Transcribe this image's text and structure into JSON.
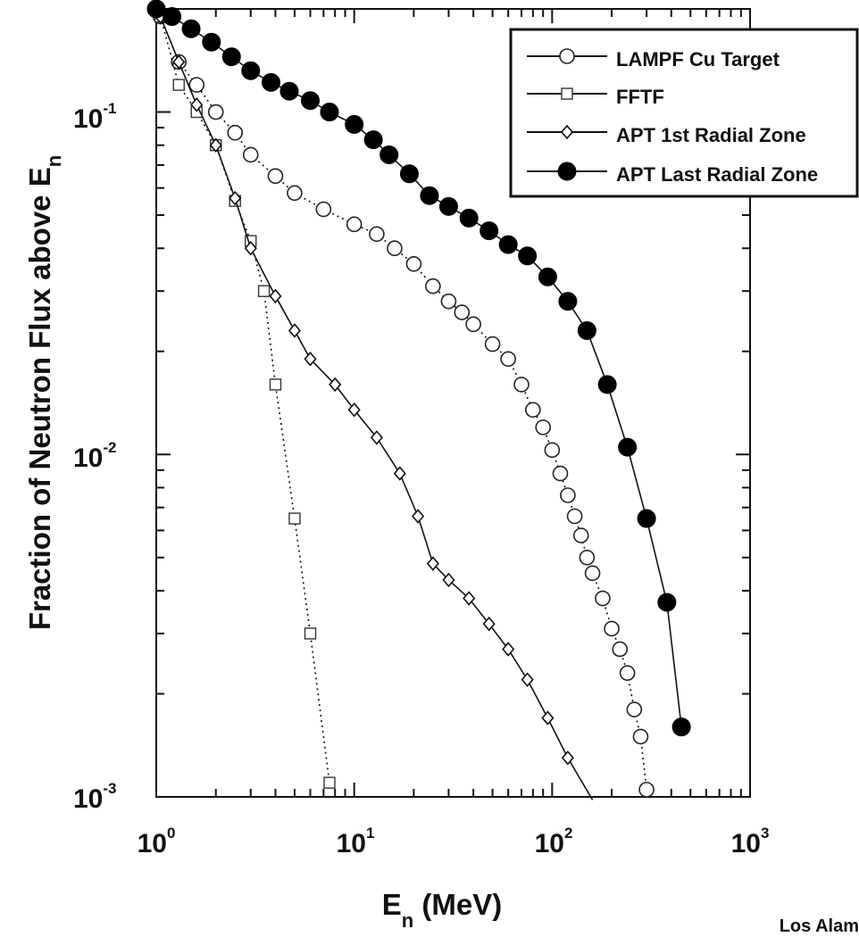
{
  "chart_data": {
    "type": "line",
    "xscale": "log",
    "yscale": "log",
    "xlim": [
      1,
      1000
    ],
    "ylim": [
      0.001,
      0.2
    ],
    "xlabel": {
      "base": "E",
      "sub": "n",
      "rest": " (MeV)"
    },
    "ylabel": {
      "base": "Fraction of Neutron  Flux above E",
      "sub": "n"
    },
    "x_ticks": [
      {
        "base": "10",
        "exp": "0"
      },
      {
        "base": "10",
        "exp": "1"
      },
      {
        "base": "10",
        "exp": "2"
      },
      {
        "base": "10",
        "exp": "3"
      }
    ],
    "y_ticks": [
      {
        "base": "10",
        "exp": "-1"
      },
      {
        "base": "10",
        "exp": "-2"
      },
      {
        "base": "10",
        "exp": "-3"
      }
    ],
    "footer": "Los Alam",
    "series": [
      {
        "name": "LAMPF Cu Target",
        "marker": "open-circle",
        "line": "dotted",
        "x": [
          1.05,
          1.3,
          1.6,
          2.0,
          2.5,
          3.0,
          4.0,
          5.0,
          7.0,
          10,
          13,
          16,
          20,
          25,
          30,
          35,
          40,
          50,
          60,
          70,
          80,
          90,
          100,
          110,
          120,
          130,
          140,
          150,
          160,
          180,
          200,
          220,
          240,
          260,
          280,
          300
        ],
        "y": [
          0.19,
          0.14,
          0.12,
          0.1,
          0.087,
          0.075,
          0.065,
          0.058,
          0.052,
          0.047,
          0.044,
          0.04,
          0.036,
          0.031,
          0.028,
          0.026,
          0.024,
          0.021,
          0.019,
          0.016,
          0.0135,
          0.012,
          0.0103,
          0.0088,
          0.0076,
          0.0066,
          0.0058,
          0.005,
          0.0045,
          0.0038,
          0.0031,
          0.0027,
          0.0023,
          0.0018,
          0.0015,
          0.00105
        ]
      },
      {
        "name": "FFTF",
        "marker": "open-square",
        "line": "dotted",
        "x": [
          1.05,
          1.3,
          1.6,
          2.0,
          2.5,
          3.0,
          3.5,
          4.0,
          5.0,
          6.0,
          7.5
        ],
        "y": [
          0.19,
          0.12,
          0.1,
          0.08,
          0.055,
          0.042,
          0.03,
          0.016,
          0.0065,
          0.003,
          0.0011
        ]
      },
      {
        "name": "APT 1st Radial Zone",
        "marker": "open-diamond",
        "line": "solid",
        "x": [
          1.05,
          1.3,
          1.6,
          2.0,
          2.5,
          3.0,
          4.0,
          5.0,
          6.0,
          8.0,
          10,
          13,
          17,
          21,
          25,
          30,
          38,
          48,
          60,
          75,
          95,
          120,
          160
        ],
        "y": [
          0.19,
          0.14,
          0.105,
          0.08,
          0.056,
          0.04,
          0.029,
          0.023,
          0.019,
          0.016,
          0.0135,
          0.0112,
          0.0088,
          0.0066,
          0.0048,
          0.0043,
          0.0038,
          0.0032,
          0.0027,
          0.0022,
          0.0017,
          0.0013,
          0.00098
        ]
      },
      {
        "name": "APT Last Radial Zone",
        "marker": "filled-circle",
        "line": "solid",
        "x": [
          1.0,
          1.2,
          1.5,
          1.9,
          2.4,
          3.0,
          3.8,
          4.7,
          6.0,
          7.5,
          10,
          12.5,
          15,
          19,
          24,
          30,
          38,
          48,
          60,
          75,
          95,
          120,
          150,
          190,
          240,
          300,
          380,
          450
        ],
        "y": [
          0.2,
          0.19,
          0.175,
          0.16,
          0.145,
          0.132,
          0.122,
          0.115,
          0.108,
          0.1,
          0.092,
          0.083,
          0.075,
          0.066,
          0.057,
          0.053,
          0.049,
          0.045,
          0.041,
          0.038,
          0.033,
          0.028,
          0.023,
          0.016,
          0.0105,
          0.0065,
          0.0037,
          0.0016
        ]
      }
    ],
    "legend": {
      "placement": "top-right",
      "entries": [
        "LAMPF Cu Target",
        "FFTF",
        "APT 1st Radial Zone",
        "APT Last Radial Zone"
      ]
    }
  }
}
